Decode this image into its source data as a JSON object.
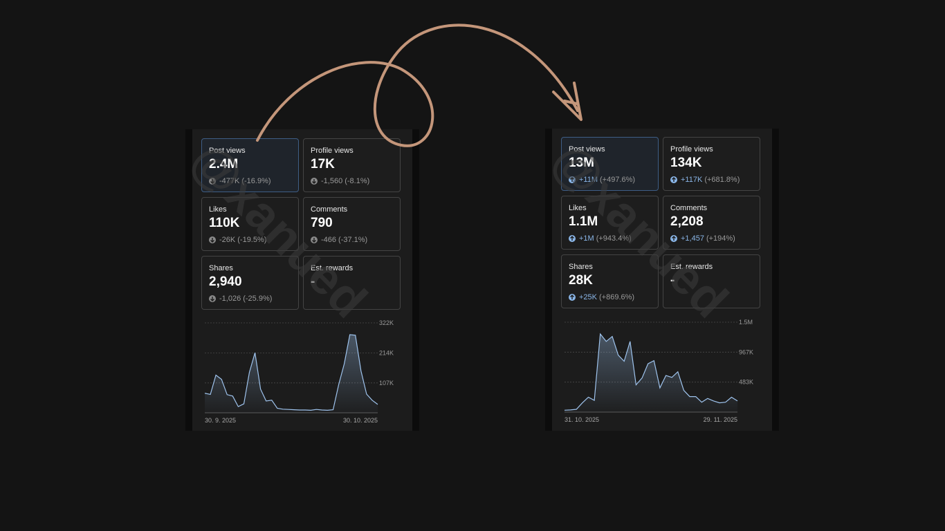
{
  "watermark": "@xanued",
  "colors": {
    "arrow": "#c4967a",
    "accent": "#8ab6e8",
    "down": "#8a8a8a",
    "line": "#9fc4ee"
  },
  "panels": [
    {
      "id": "before",
      "cards": [
        {
          "label": "Post views",
          "value": "2.4M",
          "change": "-477K",
          "pct": "(-16.9%)",
          "dir": "down",
          "active": true
        },
        {
          "label": "Profile views",
          "value": "17K",
          "change": "-1,560",
          "pct": "(-8.1%)",
          "dir": "down",
          "active": false
        },
        {
          "label": "Likes",
          "value": "110K",
          "change": "-26K",
          "pct": "(-19.5%)",
          "dir": "down",
          "active": false
        },
        {
          "label": "Comments",
          "value": "790",
          "change": "-466",
          "pct": "(-37.1%)",
          "dir": "down",
          "active": false
        },
        {
          "label": "Shares",
          "value": "2,940",
          "change": "-1,026",
          "pct": "(-25.9%)",
          "dir": "down",
          "active": false
        },
        {
          "label": "Est. rewards",
          "value": "-",
          "change": "",
          "pct": "",
          "dir": "none",
          "active": false
        }
      ],
      "chart_data": {
        "type": "line",
        "x_start_label": "30. 9. 2025",
        "x_end_label": "30. 10. 2025",
        "yticks": [
          {
            "v": 107000,
            "label": "107K"
          },
          {
            "v": 214000,
            "label": "214K"
          },
          {
            "v": 322000,
            "label": "322K"
          }
        ],
        "ylim": [
          0,
          322000
        ],
        "values": [
          70000,
          66000,
          135000,
          120000,
          65000,
          60000,
          22000,
          32000,
          145000,
          215000,
          85000,
          42000,
          45000,
          16000,
          13000,
          12000,
          11000,
          10000,
          10000,
          9000,
          12000,
          10000,
          9000,
          11000,
          100000,
          175000,
          280000,
          278000,
          150000,
          67000,
          45000,
          30000
        ]
      }
    },
    {
      "id": "after",
      "cards": [
        {
          "label": "Post views",
          "value": "13M",
          "change": "+11M",
          "pct": "(+497.6%)",
          "dir": "up",
          "active": true
        },
        {
          "label": "Profile views",
          "value": "134K",
          "change": "+117K",
          "pct": "(+681.8%)",
          "dir": "up",
          "active": false
        },
        {
          "label": "Likes",
          "value": "1.1M",
          "change": "+1M",
          "pct": "(+943.4%)",
          "dir": "up",
          "active": false
        },
        {
          "label": "Comments",
          "value": "2,208",
          "change": "+1,457",
          "pct": "(+194%)",
          "dir": "up",
          "active": false
        },
        {
          "label": "Shares",
          "value": "28K",
          "change": "+25K",
          "pct": "(+869.6%)",
          "dir": "up",
          "active": false
        },
        {
          "label": "Est. rewards",
          "value": "-",
          "change": "",
          "pct": "",
          "dir": "none",
          "active": false
        }
      ],
      "chart_data": {
        "type": "line",
        "x_start_label": "31. 10. 2025",
        "x_end_label": "29. 11. 2025",
        "yticks": [
          {
            "v": 483000,
            "label": "483K"
          },
          {
            "v": 967000,
            "label": "967K"
          },
          {
            "v": 1450000,
            "label": "1.5M"
          }
        ],
        "ylim": [
          0,
          1450000
        ],
        "values": [
          30000,
          35000,
          45000,
          150000,
          240000,
          190000,
          1260000,
          1140000,
          1220000,
          920000,
          820000,
          1140000,
          440000,
          550000,
          780000,
          830000,
          390000,
          590000,
          560000,
          650000,
          350000,
          250000,
          250000,
          160000,
          220000,
          180000,
          150000,
          160000,
          240000,
          180000
        ]
      }
    }
  ]
}
